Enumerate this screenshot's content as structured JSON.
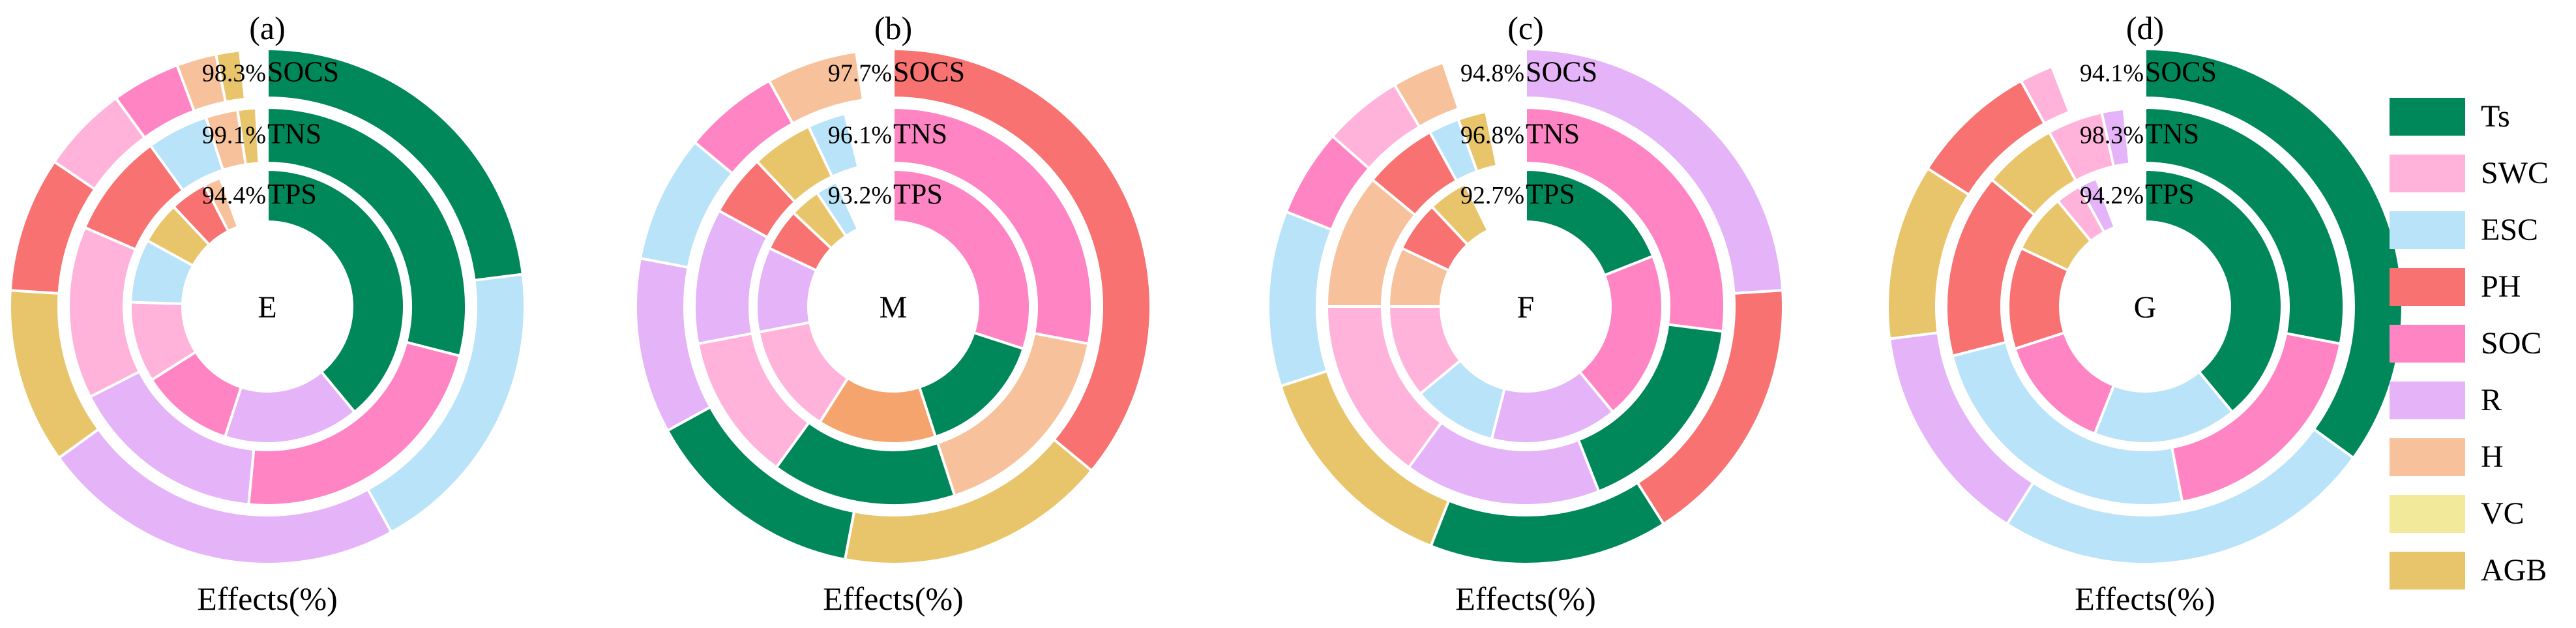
{
  "chart_data": {
    "type": "pie",
    "subtype": "multi-ring donut (sunburst-style)",
    "legend": {
      "placement": "right",
      "entries": [
        {
          "key": "Ts",
          "label": "Ts",
          "color": "#00875A"
        },
        {
          "key": "SWC",
          "label": "SWC",
          "color": "#FFB3DA"
        },
        {
          "key": "ESC",
          "label": "ESC",
          "color": "#B9E3F8"
        },
        {
          "key": "PH",
          "label": "PH",
          "color": "#F87272"
        },
        {
          "key": "SOC",
          "label": "SOC",
          "color": "#FF84C4"
        },
        {
          "key": "R",
          "label": "R",
          "color": "#E5B3F8"
        },
        {
          "key": "H",
          "label": "H",
          "color": "#F7C29B"
        },
        {
          "key": "VC",
          "label": "VC",
          "color": "#F2E99A"
        },
        {
          "key": "AGB",
          "label": "AGB",
          "color": "#E8C56A"
        }
      ]
    },
    "extra_colors": {
      "unlabeled_orange": "#F4A46C"
    },
    "ring_labels": [
      "SOCS",
      "TNS",
      "TPS"
    ],
    "xlabel": "Effects(%)",
    "panels": [
      {
        "panel_label": "(a)",
        "center_label": "E",
        "xlabel": "Effects(%)",
        "rings": [
          {
            "name": "SOCS",
            "total_pct_label": "98.3%",
            "total": 98.3,
            "slices": [
              {
                "key": "Ts",
                "value": 23.0
              },
              {
                "key": "ESC",
                "value": 19.0
              },
              {
                "key": "R",
                "value": 23.0
              },
              {
                "key": "AGB",
                "value": 11.0
              },
              {
                "key": "PH",
                "value": 8.5
              },
              {
                "key": "SWC",
                "value": 5.5
              },
              {
                "key": "SOC",
                "value": 4.3
              },
              {
                "key": "H",
                "value": 2.5
              },
              {
                "key": "AGB",
                "value": 1.5
              }
            ]
          },
          {
            "name": "TNS",
            "total_pct_label": "99.1%",
            "total": 99.1,
            "slices": [
              {
                "key": "Ts",
                "value": 29.0
              },
              {
                "key": "SOC",
                "value": 22.5
              },
              {
                "key": "R",
                "value": 16.0
              },
              {
                "key": "SWC",
                "value": 14.0
              },
              {
                "key": "PH",
                "value": 8.5
              },
              {
                "key": "ESC",
                "value": 5.0
              },
              {
                "key": "H",
                "value": 2.6
              },
              {
                "key": "AGB",
                "value": 1.5
              }
            ]
          },
          {
            "name": "TPS",
            "total_pct_label": "94.4%",
            "total": 94.4,
            "slices": [
              {
                "key": "Ts",
                "value": 39.0
              },
              {
                "key": "R",
                "value": 16.0
              },
              {
                "key": "SOC",
                "value": 11.0
              },
              {
                "key": "SWC",
                "value": 9.5
              },
              {
                "key": "ESC",
                "value": 7.5
              },
              {
                "key": "AGB",
                "value": 5.0
              },
              {
                "key": "PH",
                "value": 4.4
              },
              {
                "key": "H",
                "value": 2.0
              }
            ]
          }
        ]
      },
      {
        "panel_label": "(b)",
        "center_label": "M",
        "xlabel": "Effects(%)",
        "rings": [
          {
            "name": "SOCS",
            "total_pct_label": "97.7%",
            "total": 97.7,
            "slices": [
              {
                "key": "PH",
                "value": 36.0
              },
              {
                "key": "AGB",
                "value": 17.0
              },
              {
                "key": "Ts",
                "value": 14.0
              },
              {
                "key": "R",
                "value": 11.0
              },
              {
                "key": "ESC",
                "value": 8.0
              },
              {
                "key": "SOC",
                "value": 6.0
              },
              {
                "key": "H",
                "value": 5.7
              }
            ]
          },
          {
            "name": "TNS",
            "total_pct_label": "96.1%",
            "total": 96.1,
            "slices": [
              {
                "key": "SOC",
                "value": 28.0
              },
              {
                "key": "H",
                "value": 17.0
              },
              {
                "key": "Ts",
                "value": 15.0
              },
              {
                "key": "SWC",
                "value": 12.0
              },
              {
                "key": "R",
                "value": 11.0
              },
              {
                "key": "PH",
                "value": 5.0
              },
              {
                "key": "AGB",
                "value": 5.0
              },
              {
                "key": "ESC",
                "value": 3.1
              }
            ]
          },
          {
            "name": "TPS",
            "total_pct_label": "93.2%",
            "total": 93.2,
            "slices": [
              {
                "key": "SOC",
                "value": 30.0
              },
              {
                "key": "Ts",
                "value": 15.0
              },
              {
                "key": "unlabeled_orange",
                "value": 14.0
              },
              {
                "key": "SWC",
                "value": 13.0
              },
              {
                "key": "R",
                "value": 10.0
              },
              {
                "key": "PH",
                "value": 5.0
              },
              {
                "key": "AGB",
                "value": 3.6
              },
              {
                "key": "ESC",
                "value": 2.6
              }
            ]
          }
        ]
      },
      {
        "panel_label": "(c)",
        "center_label": "F",
        "xlabel": "Effects(%)",
        "rings": [
          {
            "name": "SOCS",
            "total_pct_label": "94.8%",
            "total": 94.8,
            "slices": [
              {
                "key": "R",
                "value": 24.0
              },
              {
                "key": "PH",
                "value": 17.0
              },
              {
                "key": "Ts",
                "value": 15.0
              },
              {
                "key": "AGB",
                "value": 14.0
              },
              {
                "key": "ESC",
                "value": 11.0
              },
              {
                "key": "SOC",
                "value": 5.5
              },
              {
                "key": "SWC",
                "value": 5.0
              },
              {
                "key": "H",
                "value": 3.3
              }
            ]
          },
          {
            "name": "TNS",
            "total_pct_label": "96.8%",
            "total": 96.8,
            "slices": [
              {
                "key": "SOC",
                "value": 27.0
              },
              {
                "key": "Ts",
                "value": 17.0
              },
              {
                "key": "R",
                "value": 16.0
              },
              {
                "key": "SWC",
                "value": 15.0
              },
              {
                "key": "H",
                "value": 11.0
              },
              {
                "key": "PH",
                "value": 6.0
              },
              {
                "key": "ESC",
                "value": 2.5
              },
              {
                "key": "AGB",
                "value": 2.3
              }
            ]
          },
          {
            "name": "TPS",
            "total_pct_label": "92.7%",
            "total": 92.7,
            "slices": [
              {
                "key": "Ts",
                "value": 19.0
              },
              {
                "key": "SOC",
                "value": 20.0
              },
              {
                "key": "R",
                "value": 15.0
              },
              {
                "key": "ESC",
                "value": 10.0
              },
              {
                "key": "SWC",
                "value": 11.0
              },
              {
                "key": "H",
                "value": 7.0
              },
              {
                "key": "PH",
                "value": 6.0
              },
              {
                "key": "AGB",
                "value": 4.7
              }
            ]
          }
        ]
      },
      {
        "panel_label": "(d)",
        "center_label": "G",
        "xlabel": "Effects(%)",
        "rings": [
          {
            "name": "SOCS",
            "total_pct_label": "94.1%",
            "total": 94.1,
            "slices": [
              {
                "key": "Ts",
                "value": 35.0
              },
              {
                "key": "ESC",
                "value": 24.0
              },
              {
                "key": "R",
                "value": 14.0
              },
              {
                "key": "AGB",
                "value": 11.0
              },
              {
                "key": "PH",
                "value": 8.0
              },
              {
                "key": "SWC",
                "value": 2.1
              }
            ]
          },
          {
            "name": "TNS",
            "total_pct_label": "98.3%",
            "total": 98.3,
            "slices": [
              {
                "key": "Ts",
                "value": 28.0
              },
              {
                "key": "SOC",
                "value": 19.0
              },
              {
                "key": "ESC",
                "value": 24.0
              },
              {
                "key": "PH",
                "value": 15.0
              },
              {
                "key": "AGB",
                "value": 6.0
              },
              {
                "key": "SWC",
                "value": 4.5
              },
              {
                "key": "R",
                "value": 1.8
              }
            ]
          },
          {
            "name": "TPS",
            "total_pct_label": "94.2%",
            "total": 94.2,
            "slices": [
              {
                "key": "Ts",
                "value": 39.0
              },
              {
                "key": "ESC",
                "value": 17.0
              },
              {
                "key": "SOC",
                "value": 14.0
              },
              {
                "key": "PH",
                "value": 12.0
              },
              {
                "key": "AGB",
                "value": 7.0
              },
              {
                "key": "SWC",
                "value": 3.0
              },
              {
                "key": "R",
                "value": 2.2
              }
            ]
          }
        ]
      }
    ]
  }
}
